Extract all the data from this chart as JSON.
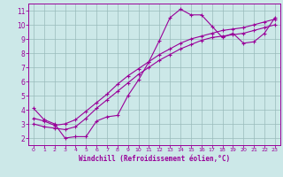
{
  "xlabel": "Windchill (Refroidissement éolien,°C)",
  "bg_color": "#cce8e8",
  "line_color": "#990099",
  "grid_color": "#99bbbb",
  "xlim": [
    -0.5,
    23.5
  ],
  "ylim": [
    1.5,
    11.5
  ],
  "xticks": [
    0,
    1,
    2,
    3,
    4,
    5,
    6,
    7,
    8,
    9,
    10,
    11,
    12,
    13,
    14,
    15,
    16,
    17,
    18,
    19,
    20,
    21,
    22,
    23
  ],
  "yticks": [
    2,
    3,
    4,
    5,
    6,
    7,
    8,
    9,
    10,
    11
  ],
  "line1_x": [
    0,
    1,
    2,
    3,
    4,
    5,
    6,
    7,
    8,
    9,
    10,
    11,
    12,
    13,
    14,
    15,
    16,
    17,
    18,
    19,
    20,
    21,
    22,
    23
  ],
  "line1_y": [
    4.1,
    3.3,
    3.0,
    2.0,
    2.1,
    2.1,
    3.2,
    3.5,
    3.6,
    5.0,
    6.1,
    7.4,
    8.9,
    10.5,
    11.1,
    10.7,
    10.7,
    9.9,
    9.1,
    9.4,
    8.7,
    8.8,
    9.4,
    10.5
  ],
  "line2_x": [
    0,
    1,
    2,
    3,
    4,
    5,
    6,
    7,
    8,
    9,
    10,
    11,
    12,
    13,
    14,
    15,
    16,
    17,
    18,
    19,
    20,
    21,
    22,
    23
  ],
  "line2_y": [
    3.4,
    3.2,
    2.9,
    3.0,
    3.3,
    3.9,
    4.5,
    5.1,
    5.8,
    6.4,
    6.9,
    7.4,
    7.9,
    8.3,
    8.7,
    9.0,
    9.2,
    9.4,
    9.6,
    9.7,
    9.8,
    10.0,
    10.2,
    10.4
  ],
  "line3_x": [
    0,
    1,
    2,
    3,
    4,
    5,
    6,
    7,
    8,
    9,
    10,
    11,
    12,
    13,
    14,
    15,
    16,
    17,
    18,
    19,
    20,
    21,
    22,
    23
  ],
  "line3_y": [
    3.0,
    2.8,
    2.7,
    2.6,
    2.8,
    3.4,
    4.1,
    4.7,
    5.3,
    5.9,
    6.5,
    7.0,
    7.5,
    7.9,
    8.3,
    8.6,
    8.9,
    9.1,
    9.2,
    9.3,
    9.4,
    9.6,
    9.8,
    10.0
  ]
}
